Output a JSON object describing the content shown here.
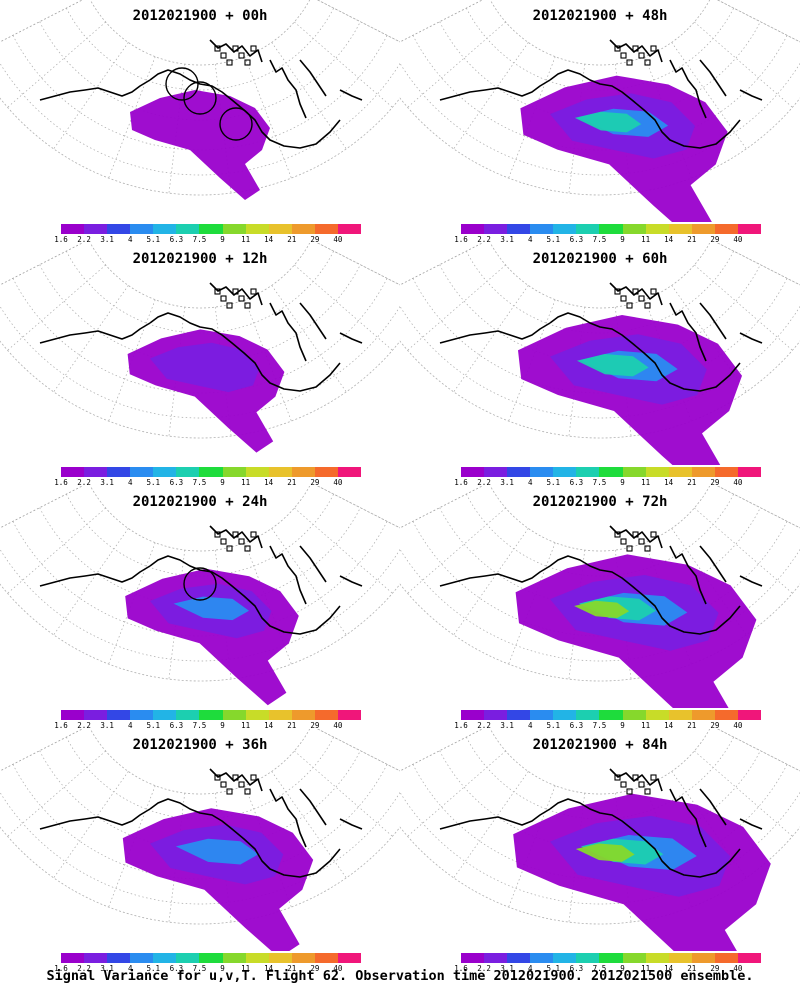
{
  "panels": [
    {
      "title": "2012021900 + 00h",
      "lead_hours": 0,
      "plume_level": 0,
      "circles": 3
    },
    {
      "title": "2012021900 + 12h",
      "lead_hours": 12,
      "plume_level": 1,
      "circles": 0
    },
    {
      "title": "2012021900 + 24h",
      "lead_hours": 24,
      "plume_level": 2,
      "circles": 1
    },
    {
      "title": "2012021900 + 36h",
      "lead_hours": 36,
      "plume_level": 3,
      "circles": 0
    },
    {
      "title": "2012021900 + 48h",
      "lead_hours": 48,
      "plume_level": 4,
      "circles": 0
    },
    {
      "title": "2012021900 + 60h",
      "lead_hours": 60,
      "plume_level": 5,
      "circles": 0
    },
    {
      "title": "2012021900 + 72h",
      "lead_hours": 72,
      "plume_level": 6,
      "circles": 0
    },
    {
      "title": "2012021900 + 84h",
      "lead_hours": 84,
      "plume_level": 7,
      "circles": 0
    }
  ],
  "colorbar": {
    "labels": [
      "1.6",
      "2.2",
      "3.1",
      "4",
      "5.1",
      "6.3",
      "7.5",
      "9",
      "11",
      "14",
      "21",
      "29",
      "40"
    ],
    "colors": [
      "#9a00cc",
      "#7a1ee0",
      "#3347e6",
      "#2a8cf0",
      "#22b4e6",
      "#1ccfb0",
      "#1edc3c",
      "#86d82c",
      "#c8dc28",
      "#e8c22c",
      "#ee9a2c",
      "#f56a2c",
      "#f0167a"
    ]
  },
  "caption": "Signal Variance for u,v,T. Flight 62. Observation time 2012021900. 2012021500 ensemble."
}
